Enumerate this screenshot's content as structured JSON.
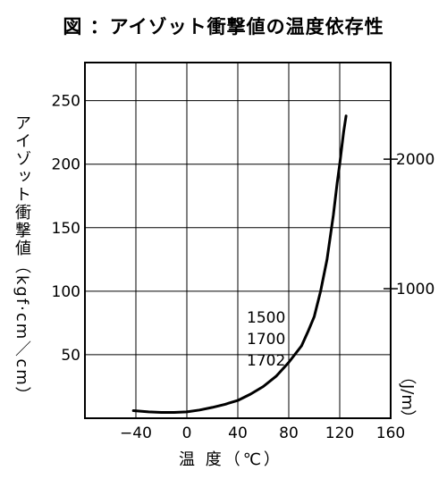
{
  "chart_data": {
    "type": "line",
    "title": "図 ：アイゾット衝撃値の温度依存性",
    "xlabel": "温 度（℃）",
    "ylabel": "アイゾット衝撃値（kgf·cm／cm）",
    "y2label": "（J/m）",
    "xlim": [
      -80,
      160
    ],
    "ylim": [
      0,
      280
    ],
    "x_ticks": [
      "−40",
      "0",
      "40",
      "80",
      "120",
      "160"
    ],
    "y_ticks": [
      "50",
      "100",
      "150",
      "200",
      "250"
    ],
    "y2_ticks": [
      "1000",
      "2000"
    ],
    "grid": true,
    "annotations": [
      "1500",
      "1700",
      "1702"
    ],
    "series": [
      {
        "x": [
          -42,
          -30,
          -20,
          -10,
          0,
          10,
          20,
          30,
          40,
          50,
          60,
          70,
          80,
          90,
          95,
          100,
          105,
          110,
          115,
          118,
          120,
          123,
          125
        ],
        "y": [
          6,
          5,
          4.6,
          4.6,
          5,
          6.5,
          8.5,
          11,
          14,
          19,
          25,
          33,
          44,
          57,
          68,
          80,
          100,
          125,
          160,
          185,
          200,
          225,
          238
        ]
      }
    ]
  }
}
